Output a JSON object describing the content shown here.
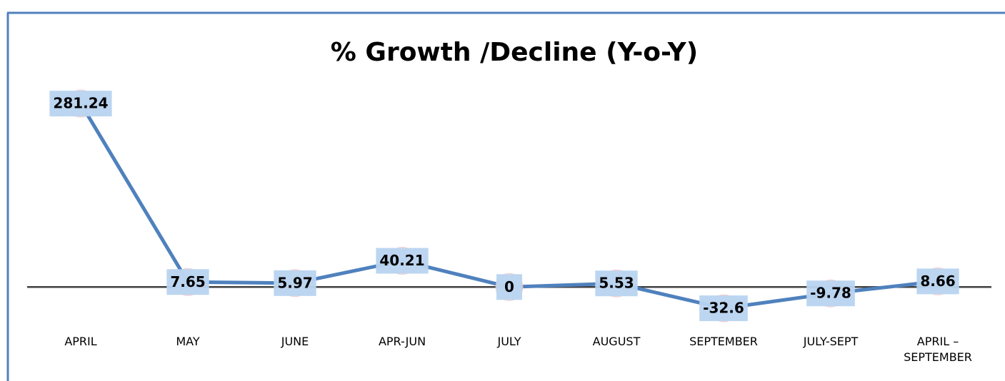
{
  "chart_data": {
    "type": "line",
    "title": "% Growth /Decline (Y-o-Y)",
    "categories": [
      "APRIL",
      "MAY",
      "JUNE",
      "APR-JUN",
      "JULY",
      "AUGUST",
      "SEPTEMBER",
      "JULY-SEPT",
      "APRIL – SEPTEMBER"
    ],
    "values": [
      281.24,
      7.65,
      5.97,
      40.21,
      0,
      5.53,
      -32.6,
      -9.78,
      8.66
    ],
    "color": "#4f81bd",
    "ylim": [
      -50,
      300
    ]
  }
}
